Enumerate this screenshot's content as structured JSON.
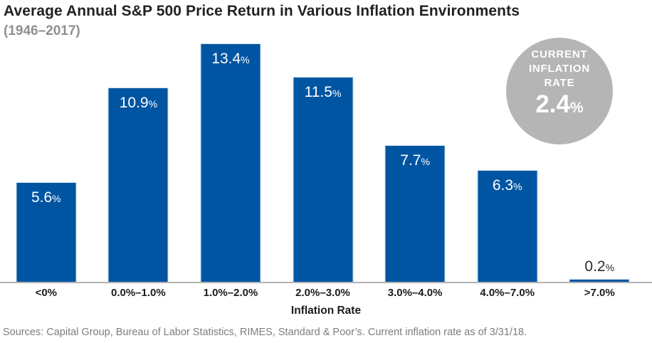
{
  "header": {
    "title": "Average Annual S&P 500 Price Return in Various Inflation Environments",
    "subtitle": "(1946–2017)"
  },
  "badge": {
    "lines": [
      "CURRENT",
      "INFLATION",
      "RATE"
    ],
    "value": "2.4",
    "percent_sign": "%",
    "bg_color": "#b5b5b5"
  },
  "chart_data": {
    "type": "bar",
    "title": "Average Annual S&P 500 Price Return in Various Inflation Environments",
    "subtitle": "(1946–2017)",
    "categories": [
      "<0%",
      "0.0%–1.0%",
      "1.0%–2.0%",
      "2.0%–3.0%",
      "3.0%–4.0%",
      "4.0%–7.0%",
      ">7.0%"
    ],
    "values": [
      5.6,
      10.9,
      13.4,
      11.5,
      7.7,
      6.3,
      0.2
    ],
    "value_labels": [
      "5.6",
      "10.9",
      "13.4",
      "11.5",
      "7.7",
      "6.3",
      "0.2"
    ],
    "percent_sign": "%",
    "xlabel": "Inflation Rate",
    "ylabel": "",
    "ylim": [
      0,
      13.6
    ],
    "grid": false,
    "legend": "none",
    "bar_color": "#0055a2",
    "label_inside_color": "#ffffff",
    "label_outside_color": "#2b2b2b",
    "outside_label_below": 1.0
  },
  "xaxis": {
    "label": "Inflation Rate"
  },
  "footer": {
    "text": "Sources: Capital Group, Bureau of Labor Statistics, RIMES, Standard & Poor’s. Current inflation rate as of 3/31/18."
  }
}
